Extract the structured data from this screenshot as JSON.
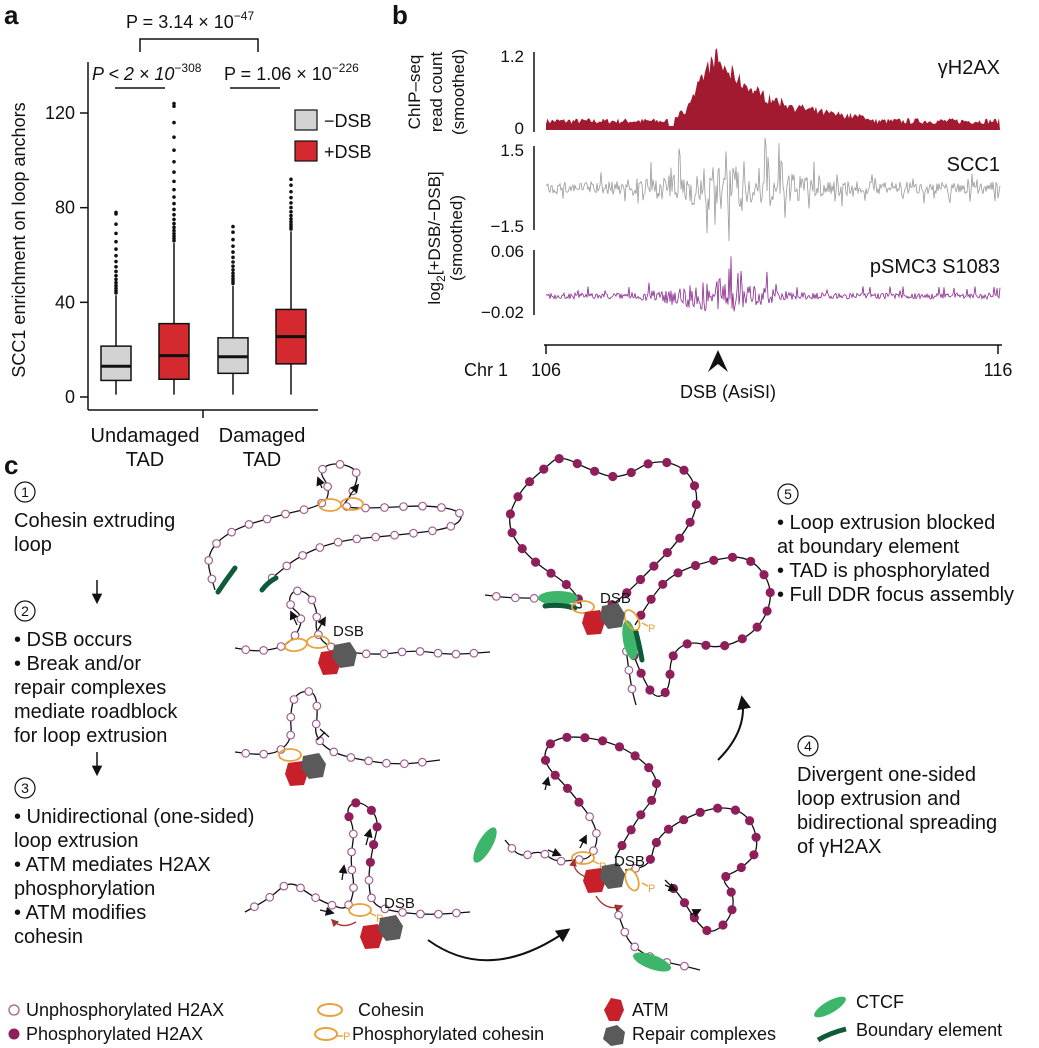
{
  "panels": {
    "a": "a",
    "b": "b",
    "c": "c"
  },
  "panel_a": {
    "ylabel": "SCC1 enrichment on loop anchors",
    "groups": [
      {
        "line1": "Undamaged",
        "line2": "TAD"
      },
      {
        "line1": "Damaged",
        "line2": "TAD"
      }
    ],
    "legend": [
      {
        "label": "−DSB",
        "color": "#d3d3d3"
      },
      {
        "label": "+DSB",
        "color": "#d42a2f"
      }
    ],
    "sig": [
      {
        "pre": "P < 2 × 10",
        "exp": "−308"
      },
      {
        "pre": "P = 1.06 × 10",
        "exp": "−226"
      },
      {
        "pre": "P = 3.14 × 10",
        "exp": "−47"
      }
    ]
  },
  "chart_data": [
    {
      "type": "box",
      "ylabel": "SCC1 enrichment on loop anchors",
      "ylim": [
        0,
        130
      ],
      "yticks": [
        0,
        40,
        80,
        120
      ],
      "categories": [
        "Undamaged TAD",
        "Damaged TAD"
      ],
      "series": [
        {
          "name": "−DSB",
          "color": "#d3d3d3",
          "boxes": [
            {
              "whisker_low": 1,
              "q1": 7,
              "median": 13,
              "q3": 21.5,
              "whisker_high": 43,
              "outlier_max": 78
            },
            {
              "whisker_low": 1,
              "q1": 10,
              "median": 17,
              "q3": 25,
              "whisker_high": 47,
              "outlier_max": 72
            }
          ]
        },
        {
          "name": "+DSB",
          "color": "#d42a2f",
          "boxes": [
            {
              "whisker_low": 1,
              "q1": 7.5,
              "median": 17.5,
              "q3": 31,
              "whisker_high": 65,
              "outlier_max": 124
            },
            {
              "whisker_low": 1,
              "q1": 14,
              "median": 25.5,
              "q3": 37,
              "whisker_high": 70,
              "outlier_max": 92
            }
          ]
        }
      ]
    },
    {
      "type": "area",
      "series": [
        {
          "name": "γH2AX",
          "color": "#a11a30"
        }
      ],
      "ylabel": "ChIP–seq read count (smoothed)",
      "yticks": [
        0,
        1.2
      ],
      "xlabel": "Chr 1",
      "xticks": [
        106,
        116
      ],
      "annotation": "DSB (AsiSI)"
    },
    {
      "type": "line",
      "series": [
        {
          "name": "SCC1",
          "color": "#9a9a9a"
        }
      ],
      "yticks": [
        -1.5,
        1.5
      ]
    },
    {
      "type": "line",
      "series": [
        {
          "name": "pSMC3 S1083",
          "color": "#8b2a91"
        }
      ],
      "yticks": [
        -0.02,
        0.06
      ]
    }
  ],
  "panel_b": {
    "gh2ax": {
      "name": "γH2AX",
      "ylabel1": "ChIP–seq",
      "ylabel2": "read count",
      "ylabel3": "(smoothed)",
      "tick_top": "1.2",
      "tick_bottom": "0",
      "color": "#a11a30"
    },
    "scc1": {
      "name": "SCC1",
      "tick_top": "1.5",
      "tick_bottom": "−1.5",
      "color": "#9a9a9a"
    },
    "psmc3": {
      "name": "pSMC3 S1083",
      "tick_top": "0.06",
      "tick_bottom": "−0.02",
      "color": "#8b2a91"
    },
    "log_label_pre": "log",
    "log_label_sub": "2",
    "log_label_post": "[+DSB/−DSB]",
    "log_label2": "(smoothed)",
    "chr_label": "Chr 1",
    "x_start": "106",
    "x_end": "116",
    "dsb_label": "DSB (AsiSI)"
  },
  "panel_c": {
    "step1": {
      "num": "1",
      "lines": [
        "Cohesin extruding",
        "loop"
      ]
    },
    "step2": {
      "num": "2",
      "lines": [
        "• DSB occurs",
        "• Break and/or",
        "repair complexes",
        "mediate roadblock",
        "for loop extrusion"
      ]
    },
    "step3": {
      "num": "3",
      "lines": [
        "• Unidirectional (one-sided)",
        "loop extrusion",
        "• ATM mediates H2AX",
        "phosphorylation",
        "• ATM modifies",
        "cohesin"
      ]
    },
    "step4": {
      "num": "4",
      "lines": [
        "Divergent one-sided",
        "loop extrusion and",
        "bidirectional spreading",
        "of γH2AX"
      ]
    },
    "step5": {
      "num": "5",
      "lines": [
        "• Loop extrusion blocked",
        "at boundary element",
        "• TAD is phosphorylated",
        "• Full DDR focus assembly"
      ]
    },
    "dsb": "DSB",
    "p": "P",
    "colors": {
      "unphos_fill": "#ffffff",
      "unphos_stroke": "#a06090",
      "phos": "#8e1f5a",
      "cohesin": "#e8a23a",
      "atm": "#c8202a",
      "repair": "#5a5a5a",
      "ctcf": "#3db56a",
      "boundary": "#0e5a3a",
      "arrow_red": "#a83232"
    }
  },
  "legend_c": [
    {
      "label": "Unphosphorylated H2AX",
      "icon": "unphosphorylated-h2ax-icon"
    },
    {
      "label": "Phosphorylated H2AX",
      "icon": "phosphorylated-h2ax-icon"
    },
    {
      "label": "Cohesin",
      "icon": "cohesin-icon"
    },
    {
      "label": "Phosphorylated cohesin",
      "icon": "phosphorylated-cohesin-icon"
    },
    {
      "label": "ATM",
      "icon": "atm-icon"
    },
    {
      "label": "Repair complexes",
      "icon": "repair-complex-icon"
    },
    {
      "label": "CTCF",
      "icon": "ctcf-icon"
    },
    {
      "label": "Boundary element",
      "icon": "boundary-element-icon"
    }
  ]
}
